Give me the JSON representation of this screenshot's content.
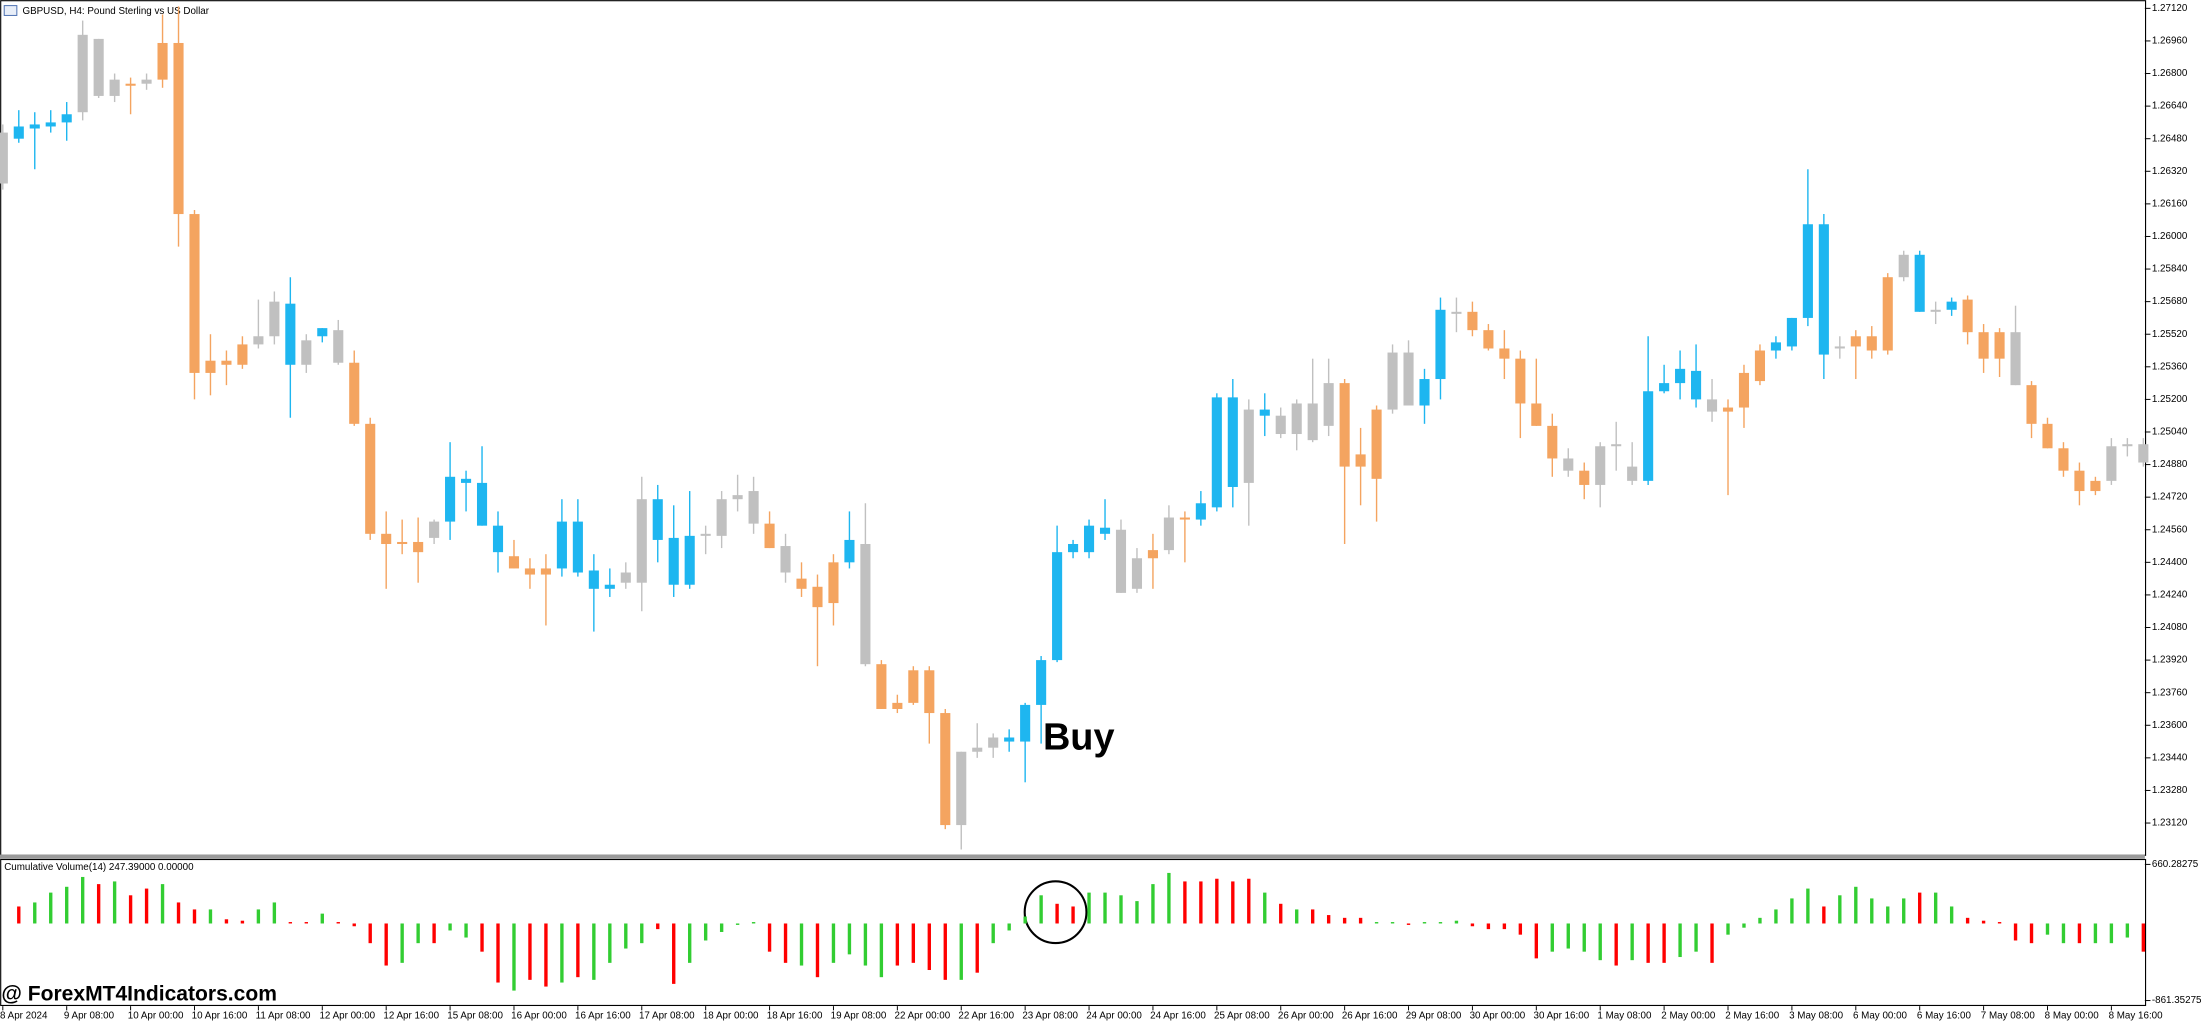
{
  "chart_data": [
    {
      "type": "candlestick",
      "title": "GBPUSD, H4:  Pound Sterling vs US Dollar",
      "annotations": [
        "Buy",
        "@ ForexMT4Indicators.com"
      ],
      "xtick_labels": [
        "8 Apr 2024",
        "9 Apr 08:00",
        "10 Apr 00:00",
        "10 Apr 16:00",
        "11 Apr 08:00",
        "12 Apr 00:00",
        "12 Apr 16:00",
        "15 Apr 08:00",
        "16 Apr 00:00",
        "16 Apr 16:00",
        "17 Apr 08:00",
        "18 Apr 00:00",
        "18 Apr 16:00",
        "19 Apr 08:00",
        "22 Apr 00:00",
        "22 Apr 16:00",
        "23 Apr 08:00",
        "24 Apr 00:00",
        "24 Apr 16:00",
        "25 Apr 08:00",
        "26 Apr 00:00",
        "26 Apr 16:00",
        "29 Apr 08:00",
        "30 Apr 00:00",
        "30 Apr 16:00",
        "1 May 08:00",
        "2 May 00:00",
        "2 May 16:00",
        "3 May 08:00",
        "6 May 00:00",
        "6 May 16:00",
        "7 May 08:00",
        "8 May 00:00",
        "8 May 16:00"
      ],
      "ylim": [
        1.22965,
        1.27161
      ],
      "yticks": [
        {
          "value": 1.2712,
          "label": "1.27120"
        },
        {
          "value": 1.2696,
          "label": "1.26960"
        },
        {
          "value": 1.268,
          "label": "1.26800"
        },
        {
          "value": 1.2664,
          "label": "1.26640"
        },
        {
          "value": 1.2648,
          "label": "1.26480"
        },
        {
          "value": 1.2632,
          "label": "1.26320"
        },
        {
          "value": 1.2616,
          "label": "1.26160"
        },
        {
          "value": 1.26,
          "label": "1.26000"
        },
        {
          "value": 1.2584,
          "label": "1.25840"
        },
        {
          "value": 1.2568,
          "label": "1.25680"
        },
        {
          "value": 1.2552,
          "label": "1.25520"
        },
        {
          "value": 1.2536,
          "label": "1.25360"
        },
        {
          "value": 1.252,
          "label": "1.25200"
        },
        {
          "value": 1.2504,
          "label": "1.25040"
        },
        {
          "value": 1.2488,
          "label": "1.24880"
        },
        {
          "value": 1.2472,
          "label": "1.24720"
        },
        {
          "value": 1.2456,
          "label": "1.24560"
        },
        {
          "value": 1.244,
          "label": "1.24400"
        },
        {
          "value": 1.2424,
          "label": "1.24240"
        },
        {
          "value": 1.2408,
          "label": "1.24080"
        },
        {
          "value": 1.2392,
          "label": "1.23920"
        },
        {
          "value": 1.2376,
          "label": "1.23760"
        },
        {
          "value": 1.236,
          "label": "1.23600"
        },
        {
          "value": 1.2344,
          "label": "1.23440"
        },
        {
          "value": 1.2328,
          "label": "1.23280"
        },
        {
          "value": 1.2312,
          "label": "1.23120"
        }
      ],
      "open": [
        1.2626,
        1.2648,
        1.2653,
        1.2654,
        1.2656,
        1.2661,
        1.2697,
        1.2669,
        1.2675,
        1.2675,
        1.2677,
        1.2695,
        1.2611,
        1.2533,
        1.2539,
        1.2537,
        1.2547,
        1.2551,
        1.2567,
        1.2537,
        1.2551,
        1.2554,
        1.2538,
        1.2508,
        1.2454,
        1.2449,
        1.245,
        1.2452,
        1.246,
        1.2481,
        1.2479,
        1.2458,
        1.2443,
        1.2437,
        1.2437,
        1.2437,
        1.246,
        1.2436,
        1.2427,
        1.243,
        1.243,
        1.2471,
        1.2452,
        1.2429,
        1.2453,
        1.2453,
        1.2471,
        1.2475,
        1.2459,
        1.2448,
        1.2432,
        1.2428,
        1.242,
        1.244,
        1.2449,
        1.239,
        1.2371,
        1.2371,
        1.2387,
        1.2366,
        1.2311,
        1.2347,
        1.2349,
        1.2352,
        1.2352,
        1.237,
        1.2392,
        1.2445,
        1.2445,
        1.2454,
        1.2456,
        1.2427,
        1.2442,
        1.2446,
        1.2461,
        1.2461,
        1.2467,
        1.2521,
        1.2479,
        1.2515,
        1.2512,
        1.2503,
        1.2518,
        1.2507,
        1.2528,
        1.2493,
        1.2481,
        1.2515,
        1.2543,
        1.2517,
        1.253,
        1.2563,
        1.2563,
        1.2554,
        1.2545,
        1.254,
        1.2518,
        1.2507,
        1.2491,
        1.2485,
        1.2478,
        1.2497,
        1.2487,
        1.248,
        1.2524,
        1.2528,
        1.2534,
        1.252,
        1.2514,
        1.2516,
        1.2529,
        1.2544,
        1.2546,
        1.256,
        1.2606,
        1.2545,
        1.2546,
        1.2551,
        1.2544,
        1.258,
        1.2591,
        1.2563,
        1.2564,
        1.2569,
        1.2553,
        1.254,
        1.2553,
        1.2527,
        1.2508,
        1.2496,
        1.2485,
        1.2475,
        1.248,
        1.2497,
        1.2498
      ],
      "high": [
        1.2655,
        1.2662,
        1.2661,
        1.2662,
        1.2666,
        1.2706,
        1.2697,
        1.268,
        1.2678,
        1.268,
        1.2709,
        1.2713,
        1.2613,
        1.2552,
        1.2544,
        1.2551,
        1.2569,
        1.2573,
        1.258,
        1.2552,
        1.2555,
        1.2559,
        1.2544,
        1.2511,
        1.2465,
        1.2461,
        1.2462,
        1.2461,
        1.2499,
        1.2485,
        1.2497,
        1.2465,
        1.2451,
        1.2442,
        1.2444,
        1.2471,
        1.2471,
        1.2444,
        1.2437,
        1.244,
        1.2482,
        1.2478,
        1.2468,
        1.2475,
        1.2458,
        1.2475,
        1.2483,
        1.2482,
        1.2465,
        1.2454,
        1.244,
        1.2434,
        1.2444,
        1.2465,
        1.2469,
        1.2392,
        1.2375,
        1.2389,
        1.2389,
        1.2368,
        1.2347,
        1.2361,
        1.2356,
        1.2358,
        1.2371,
        1.2394,
        1.2458,
        1.2451,
        1.2461,
        1.2471,
        1.2461,
        1.2447,
        1.2454,
        1.2468,
        1.2465,
        1.2475,
        1.2523,
        1.253,
        1.252,
        1.2523,
        1.2516,
        1.252,
        1.254,
        1.254,
        1.253,
        1.2506,
        1.2517,
        1.2547,
        1.2549,
        1.2535,
        1.257,
        1.257,
        1.2568,
        1.2557,
        1.2554,
        1.2544,
        1.254,
        1.2513,
        1.2496,
        1.2489,
        1.2499,
        1.2509,
        1.2499,
        1.2551,
        1.2537,
        1.2544,
        1.2547,
        1.253,
        1.252,
        1.2537,
        1.2547,
        1.2551,
        1.256,
        1.2633,
        1.2611,
        1.2551,
        1.2554,
        1.2556,
        1.2582,
        1.2593,
        1.2593,
        1.2568,
        1.257,
        1.2571,
        1.2557,
        1.2555,
        1.2566,
        1.2529,
        1.2511,
        1.2499,
        1.2489,
        1.2482,
        1.2501,
        1.2501,
        1.2501
      ],
      "low": [
        1.2623,
        1.2646,
        1.2633,
        1.2651,
        1.2647,
        1.2657,
        1.2668,
        1.2666,
        1.266,
        1.2672,
        1.2673,
        1.2595,
        1.252,
        1.2522,
        1.2527,
        1.2535,
        1.2545,
        1.2547,
        1.2511,
        1.2533,
        1.2548,
        1.2537,
        1.2507,
        1.2451,
        1.2427,
        1.2444,
        1.243,
        1.2449,
        1.2451,
        1.2465,
        1.2458,
        1.2435,
        1.2437,
        1.2427,
        1.2409,
        1.2433,
        1.2433,
        1.2406,
        1.2423,
        1.2427,
        1.2416,
        1.244,
        1.2423,
        1.2427,
        1.2444,
        1.2447,
        1.2465,
        1.2454,
        1.2447,
        1.243,
        1.2423,
        1.2389,
        1.2409,
        1.2437,
        1.2389,
        1.2368,
        1.2366,
        1.237,
        1.2351,
        1.2309,
        1.2299,
        1.2344,
        1.2344,
        1.2347,
        1.2332,
        1.2351,
        1.2391,
        1.2442,
        1.2442,
        1.2451,
        1.2425,
        1.2425,
        1.2427,
        1.2444,
        1.244,
        1.2458,
        1.2465,
        1.2467,
        1.2458,
        1.2502,
        1.2501,
        1.2495,
        1.2499,
        1.2502,
        1.2449,
        1.2468,
        1.246,
        1.2513,
        1.2517,
        1.2508,
        1.252,
        1.2553,
        1.2551,
        1.2544,
        1.253,
        1.2501,
        1.2507,
        1.2482,
        1.2482,
        1.2471,
        1.2467,
        1.2485,
        1.2478,
        1.2478,
        1.2523,
        1.252,
        1.2516,
        1.2509,
        1.2473,
        1.2506,
        1.2527,
        1.254,
        1.2544,
        1.2556,
        1.253,
        1.254,
        1.253,
        1.254,
        1.2542,
        1.2578,
        1.2563,
        1.2557,
        1.2561,
        1.2547,
        1.2533,
        1.2531,
        1.2527,
        1.2501,
        1.2496,
        1.2482,
        1.2468,
        1.2473,
        1.2478,
        1.2492,
        1.2487
      ],
      "close": [
        1.2651,
        1.2654,
        1.2655,
        1.2656,
        1.266,
        1.2699,
        1.2669,
        1.2677,
        1.2674,
        1.2677,
        1.2695,
        1.2611,
        1.2533,
        1.2539,
        1.2537,
        1.2547,
        1.2551,
        1.2568,
        1.2537,
        1.2549,
        1.2555,
        1.2538,
        1.2508,
        1.2454,
        1.2449,
        1.245,
        1.2445,
        1.246,
        1.2482,
        1.2479,
        1.2458,
        1.2445,
        1.2437,
        1.2434,
        1.2434,
        1.246,
        1.2435,
        1.2427,
        1.2429,
        1.2435,
        1.2471,
        1.2451,
        1.2429,
        1.2453,
        1.2454,
        1.2471,
        1.2473,
        1.2459,
        1.2447,
        1.2435,
        1.2427,
        1.2418,
        1.244,
        1.2451,
        1.239,
        1.2368,
        1.2368,
        1.2387,
        1.2366,
        1.2311,
        1.2347,
        1.2349,
        1.2354,
        1.2354,
        1.237,
        1.2392,
        1.2445,
        1.2449,
        1.2458,
        1.2457,
        1.2425,
        1.2442,
        1.2446,
        1.2462,
        1.2462,
        1.2469,
        1.2521,
        1.2477,
        1.2515,
        1.2512,
        1.2503,
        1.2518,
        1.25,
        1.2528,
        1.2487,
        1.2487,
        1.2515,
        1.2543,
        1.2517,
        1.253,
        1.2564,
        1.2562,
        1.2554,
        1.2545,
        1.254,
        1.2518,
        1.2507,
        1.2491,
        1.2485,
        1.2478,
        1.2497,
        1.2498,
        1.248,
        1.2524,
        1.2528,
        1.2535,
        1.252,
        1.2514,
        1.2516,
        1.2533,
        1.2544,
        1.2548,
        1.256,
        1.2606,
        1.2542,
        1.2546,
        1.2551,
        1.2544,
        1.258,
        1.2591,
        1.2563,
        1.2564,
        1.2568,
        1.2553,
        1.254,
        1.2553,
        1.2527,
        1.2508,
        1.2496,
        1.2485,
        1.2475,
        1.248,
        1.2497,
        1.2498,
        1.2489
      ],
      "colors": [
        "#c0c0c0",
        "#1eb6f0",
        "#1eb6f0",
        "#1eb6f0",
        "#1eb6f0",
        "#c0c0c0",
        "#c0c0c0",
        "#c0c0c0",
        "#f4a460",
        "#c0c0c0",
        "#f4a460",
        "#f4a460",
        "#f4a460",
        "#f4a460",
        "#f4a460",
        "#f4a460",
        "#c0c0c0",
        "#c0c0c0",
        "#1eb6f0",
        "#c0c0c0",
        "#1eb6f0",
        "#c0c0c0",
        "#f4a460",
        "#f4a460",
        "#f4a460",
        "#f4a460",
        "#f4a460",
        "#c0c0c0",
        "#1eb6f0",
        "#1eb6f0",
        "#1eb6f0",
        "#1eb6f0",
        "#f4a460",
        "#f4a460",
        "#f4a460",
        "#1eb6f0",
        "#1eb6f0",
        "#1eb6f0",
        "#1eb6f0",
        "#c0c0c0",
        "#c0c0c0",
        "#1eb6f0",
        "#1eb6f0",
        "#1eb6f0",
        "#c0c0c0",
        "#c0c0c0",
        "#c0c0c0",
        "#c0c0c0",
        "#f4a460",
        "#c0c0c0",
        "#f4a460",
        "#f4a460",
        "#f4a460",
        "#1eb6f0",
        "#c0c0c0",
        "#f4a460",
        "#f4a460",
        "#f4a460",
        "#f4a460",
        "#f4a460",
        "#c0c0c0",
        "#c0c0c0",
        "#c0c0c0",
        "#1eb6f0",
        "#1eb6f0",
        "#1eb6f0",
        "#1eb6f0",
        "#1eb6f0",
        "#1eb6f0",
        "#1eb6f0",
        "#c0c0c0",
        "#c0c0c0",
        "#f4a460",
        "#c0c0c0",
        "#f4a460",
        "#1eb6f0",
        "#1eb6f0",
        "#1eb6f0",
        "#c0c0c0",
        "#1eb6f0",
        "#c0c0c0",
        "#c0c0c0",
        "#c0c0c0",
        "#c0c0c0",
        "#f4a460",
        "#f4a460",
        "#f4a460",
        "#c0c0c0",
        "#c0c0c0",
        "#1eb6f0",
        "#1eb6f0",
        "#c0c0c0",
        "#f4a460",
        "#f4a460",
        "#f4a460",
        "#f4a460",
        "#f4a460",
        "#f4a460",
        "#c0c0c0",
        "#f4a460",
        "#c0c0c0",
        "#c0c0c0",
        "#c0c0c0",
        "#1eb6f0",
        "#1eb6f0",
        "#1eb6f0",
        "#1eb6f0",
        "#c0c0c0",
        "#f4a460",
        "#f4a460",
        "#f4a460",
        "#1eb6f0",
        "#1eb6f0",
        "#1eb6f0",
        "#1eb6f0",
        "#c0c0c0",
        "#f4a460",
        "#f4a460",
        "#f4a460",
        "#c0c0c0",
        "#1eb6f0",
        "#c0c0c0",
        "#1eb6f0",
        "#f4a460",
        "#f4a460",
        "#f4a460",
        "#c0c0c0",
        "#f4a460",
        "#f4a460",
        "#f4a460",
        "#f4a460",
        "#f4a460",
        "#c0c0c0",
        "#c0c0c0",
        "#c0c0c0"
      ]
    },
    {
      "type": "bar",
      "title": "Cumulative Volume(14) 247.39000 0.00000",
      "ylim": [
        -924,
        707
      ],
      "yticks": [
        660.28275,
        -861.35275
      ],
      "values": [
        null,
        190,
        235,
        345,
        410,
        520,
        440,
        470,
        315,
        390,
        440,
        235,
        157,
        157,
        47,
        31,
        157,
        235,
        16,
        16,
        110,
        16,
        -31,
        -220,
        -470,
        -440,
        -220,
        -220,
        -78,
        -157,
        -315,
        -660,
        -750,
        -630,
        -705,
        -660,
        -600,
        -630,
        -440,
        -280,
        -220,
        -63,
        -675,
        -440,
        -190,
        -95,
        -16,
        16,
        -315,
        -440,
        -470,
        -600,
        -440,
        -345,
        -470,
        -600,
        -470,
        -440,
        -520,
        -630,
        -630,
        -550,
        -220,
        -78,
        78,
        315,
        220,
        190,
        345,
        345,
        315,
        250,
        440,
        565,
        470,
        470,
        500,
        470,
        500,
        345,
        220,
        157,
        157,
        94,
        63,
        63,
        16,
        16,
        -16,
        16,
        16,
        31,
        -31,
        -63,
        -63,
        -125,
        -390,
        -315,
        -280,
        -315,
        -410,
        -470,
        -410,
        -440,
        -440,
        -375,
        -315,
        -440,
        -125,
        -47,
        63,
        157,
        280,
        390,
        190,
        315,
        410,
        280,
        190,
        280,
        345,
        345,
        190,
        63,
        31,
        16,
        -190,
        -220,
        -125,
        -220,
        -220,
        -220,
        -220,
        -157,
        -315
      ],
      "colors": [
        null,
        "#ff0000",
        "#32cd32",
        "#32cd32",
        "#32cd32",
        "#32cd32",
        "#ff0000",
        "#32cd32",
        "#ff0000",
        "#ff0000",
        "#32cd32",
        "#ff0000",
        "#ff0000",
        "#32cd32",
        "#ff0000",
        "#ff0000",
        "#32cd32",
        "#32cd32",
        "#ff0000",
        "#ff0000",
        "#32cd32",
        "#ff0000",
        "#ff0000",
        "#ff0000",
        "#ff0000",
        "#32cd32",
        "#32cd32",
        "#ff0000",
        "#32cd32",
        "#32cd32",
        "#ff0000",
        "#ff0000",
        "#32cd32",
        "#ff0000",
        "#ff0000",
        "#32cd32",
        "#ff0000",
        "#32cd32",
        "#32cd32",
        "#32cd32",
        "#32cd32",
        "#ff0000",
        "#ff0000",
        "#32cd32",
        "#32cd32",
        "#32cd32",
        "#32cd32",
        "#32cd32",
        "#ff0000",
        "#ff0000",
        "#32cd32",
        "#ff0000",
        "#32cd32",
        "#32cd32",
        "#32cd32",
        "#32cd32",
        "#ff0000",
        "#ff0000",
        "#ff0000",
        "#ff0000",
        "#32cd32",
        "#ff0000",
        "#32cd32",
        "#32cd32",
        "#32cd32",
        "#32cd32",
        "#ff0000",
        "#ff0000",
        "#32cd32",
        "#32cd32",
        "#32cd32",
        "#32cd32",
        "#32cd32",
        "#32cd32",
        "#ff0000",
        "#ff0000",
        "#ff0000",
        "#ff0000",
        "#ff0000",
        "#32cd32",
        "#ff0000",
        "#32cd32",
        "#ff0000",
        "#ff0000",
        "#ff0000",
        "#ff0000",
        "#32cd32",
        "#32cd32",
        "#ff0000",
        "#32cd32",
        "#32cd32",
        "#32cd32",
        "#ff0000",
        "#ff0000",
        "#ff0000",
        "#ff0000",
        "#ff0000",
        "#32cd32",
        "#32cd32",
        "#32cd32",
        "#32cd32",
        "#ff0000",
        "#32cd32",
        "#ff0000",
        "#ff0000",
        "#32cd32",
        "#32cd32",
        "#ff0000",
        "#32cd32",
        "#32cd32",
        "#32cd32",
        "#32cd32",
        "#32cd32",
        "#32cd32",
        "#ff0000",
        "#32cd32",
        "#32cd32",
        "#32cd32",
        "#32cd32",
        "#32cd32",
        "#ff0000",
        "#32cd32",
        "#32cd32",
        "#ff0000",
        "#ff0000",
        "#ff0000",
        "#ff0000",
        "#ff0000",
        "#32cd32",
        "#32cd32",
        "#ff0000",
        "#32cd32",
        "#32cd32",
        "#32cd32",
        "#ff0000"
      ]
    }
  ]
}
